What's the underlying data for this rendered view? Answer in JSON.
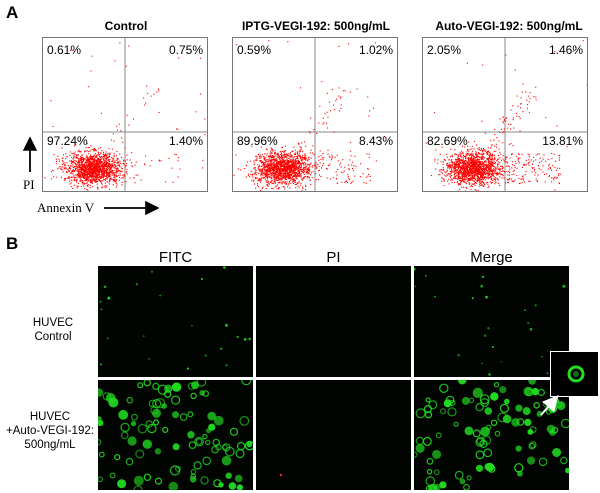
{
  "panel_a": {
    "letter": "A",
    "plots": [
      {
        "title": "Control",
        "quadrants": {
          "ul": "0.61%",
          "ur": "0.75%",
          "ll": "97.24%",
          "lr": "1.40%"
        }
      },
      {
        "title": "IPTG-VEGI-192: 500ng/mL",
        "quadrants": {
          "ul": "0.59%",
          "ur": "1.02%",
          "ll": "89.96%",
          "lr": "8.43%"
        }
      },
      {
        "title": "Auto-VEGI-192: 500ng/mL",
        "quadrants": {
          "ul": "2.05%",
          "ur": "1.46%",
          "ll": "82.69%",
          "lr": "13.81%"
        }
      }
    ],
    "y_axis_label": "PI",
    "x_axis_label": "Annexin V",
    "dot_color": "#ff0000"
  },
  "panel_b": {
    "letter": "B",
    "columns": [
      "FITC",
      "PI",
      "Merge"
    ],
    "rows": [
      {
        "label_lines": [
          "HUVEC",
          "Control"
        ]
      },
      {
        "label_lines": [
          "HUVEC",
          "+Auto-VEGI-192:",
          "500ng/mL"
        ]
      }
    ],
    "fluor_color": "#22dd22",
    "pi_color": "#ff2020"
  }
}
